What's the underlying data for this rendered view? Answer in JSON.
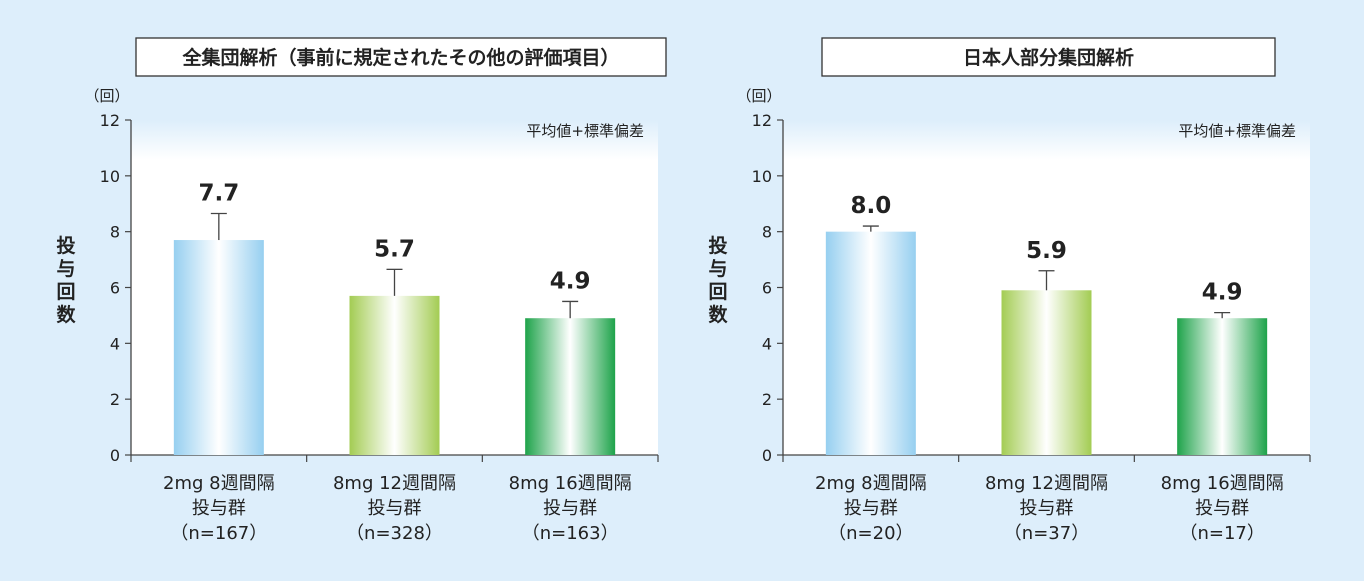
{
  "chart_data": [
    {
      "type": "bar",
      "title": "全集団解析（事前に規定されたその他の評価項目）",
      "note": "平均値+標準偏差",
      "yunit": "（回）",
      "ylabel": "投与回数",
      "ylim": [
        0,
        12
      ],
      "yticks": [
        0,
        2,
        4,
        6,
        8,
        10,
        12
      ],
      "grid": false,
      "categories": [
        [
          "2mg 8週間隔",
          "投与群",
          "（n=167）"
        ],
        [
          "8mg 12週間隔",
          "投与群",
          "（n=328）"
        ],
        [
          "8mg 16週間隔",
          "投与群",
          "（n=163）"
        ]
      ],
      "values": [
        7.7,
        5.7,
        4.9
      ],
      "value_labels": [
        "7.7",
        "5.7",
        "4.9"
      ],
      "sd": [
        0.95,
        0.95,
        0.6
      ],
      "colors": [
        "#96cff0",
        "#a3cc53",
        "#1ea34a"
      ]
    },
    {
      "type": "bar",
      "title": "日本人部分集団解析",
      "note": "平均値+標準偏差",
      "yunit": "（回）",
      "ylabel": "投与回数",
      "ylim": [
        0,
        12
      ],
      "yticks": [
        0,
        2,
        4,
        6,
        8,
        10,
        12
      ],
      "grid": false,
      "categories": [
        [
          "2mg 8週間隔",
          "投与群",
          "（n=20）"
        ],
        [
          "8mg 12週間隔",
          "投与群",
          "（n=37）"
        ],
        [
          "8mg 16週間隔",
          "投与群",
          "（n=17）"
        ]
      ],
      "values": [
        8.0,
        5.9,
        4.9
      ],
      "value_labels": [
        "8.0",
        "5.9",
        "4.9"
      ],
      "sd": [
        0.2,
        0.7,
        0.2
      ],
      "colors": [
        "#96cff0",
        "#a3cc53",
        "#1ea34a"
      ]
    }
  ]
}
